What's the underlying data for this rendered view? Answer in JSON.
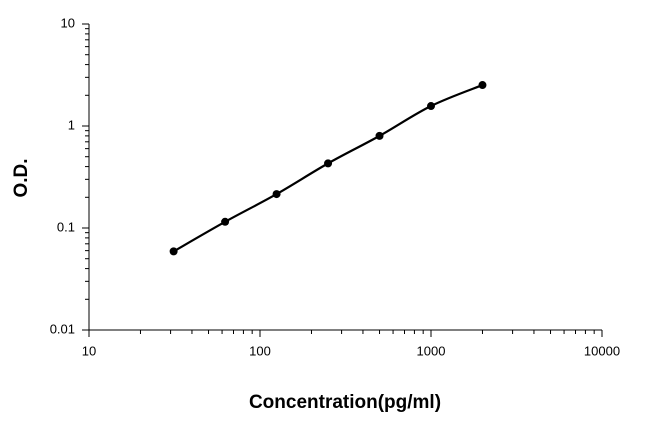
{
  "chart_data": {
    "type": "line",
    "x_label": "Concentration(pg/ml)",
    "y_label": "O.D.",
    "x": [
      31.25,
      62.5,
      125,
      250,
      500,
      1000,
      2000
    ],
    "series": [
      {
        "color": "#000000",
        "values": [
          0.059,
          0.115,
          0.215,
          0.43,
          0.8,
          1.57,
          2.52
        ]
      }
    ],
    "x_log": true,
    "y_log": true,
    "minor_ticks": true,
    "xlim": [
      10,
      10000
    ],
    "xticks": [
      10,
      100,
      1000,
      10000
    ],
    "ylim": [
      0.01,
      10
    ],
    "yticks": [
      0.01,
      0.1,
      1,
      10
    ]
  }
}
